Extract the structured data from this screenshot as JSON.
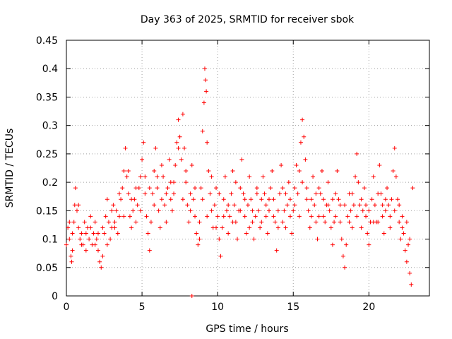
{
  "chart_data": {
    "type": "scatter",
    "title": "Day 363 of 2025, SRMTID for receiver sbok",
    "xlabel": "GPS time / hours",
    "ylabel": "SRMTID / TECUs",
    "xlim": [
      0,
      24
    ],
    "ylim": [
      0,
      0.45
    ],
    "xticks": [
      0,
      5,
      10,
      15,
      20
    ],
    "xtick_labels": [
      "0",
      "5",
      "10",
      "15",
      "20"
    ],
    "yticks": [
      0,
      0.05,
      0.1,
      0.15,
      0.2,
      0.25,
      0.3,
      0.35,
      0.4,
      0.45
    ],
    "ytick_labels": [
      "0",
      "0.05",
      "0.1",
      "0.15",
      "0.2",
      "0.25",
      "0.3",
      "0.35",
      "0.4",
      "0.45"
    ],
    "grid": true,
    "marker": "plus",
    "series": [
      {
        "name": "SRMTID",
        "color": "#ff0000",
        "points": [
          [
            0.0,
            0.09
          ],
          [
            0.1,
            0.12
          ],
          [
            0.2,
            0.1
          ],
          [
            0.3,
            0.07
          ],
          [
            0.35,
            0.06
          ],
          [
            0.4,
            0.08
          ],
          [
            0.5,
            0.13
          ],
          [
            0.55,
            0.16
          ],
          [
            0.6,
            0.19
          ],
          [
            0.7,
            0.15
          ],
          [
            0.8,
            0.12
          ],
          [
            0.9,
            0.1
          ],
          [
            1.0,
            0.11
          ],
          [
            1.1,
            0.09
          ],
          [
            1.2,
            0.13
          ],
          [
            1.3,
            0.08
          ],
          [
            1.4,
            0.12
          ],
          [
            1.5,
            0.1
          ],
          [
            1.6,
            0.14
          ],
          [
            1.7,
            0.09
          ],
          [
            1.8,
            0.11
          ],
          [
            1.9,
            0.13
          ],
          [
            2.0,
            0.1
          ],
          [
            2.1,
            0.08
          ],
          [
            2.2,
            0.06
          ],
          [
            2.3,
            0.05
          ],
          [
            2.4,
            0.07
          ],
          [
            2.5,
            0.11
          ],
          [
            2.6,
            0.14
          ],
          [
            2.7,
            0.17
          ],
          [
            2.8,
            0.13
          ],
          [
            2.9,
            0.1
          ],
          [
            3.0,
            0.12
          ],
          [
            3.1,
            0.16
          ],
          [
            3.2,
            0.13
          ],
          [
            3.3,
            0.15
          ],
          [
            3.4,
            0.11
          ],
          [
            3.5,
            0.14
          ],
          [
            3.6,
            0.17
          ],
          [
            3.7,
            0.19
          ],
          [
            3.8,
            0.22
          ],
          [
            3.9,
            0.26
          ],
          [
            4.0,
            0.21
          ],
          [
            4.1,
            0.18
          ],
          [
            4.2,
            0.14
          ],
          [
            4.3,
            0.12
          ],
          [
            4.4,
            0.15
          ],
          [
            4.5,
            0.17
          ],
          [
            4.6,
            0.13
          ],
          [
            4.7,
            0.16
          ],
          [
            4.8,
            0.19
          ],
          [
            4.9,
            0.21
          ],
          [
            5.0,
            0.24
          ],
          [
            5.1,
            0.27
          ],
          [
            5.2,
            0.18
          ],
          [
            5.3,
            0.14
          ],
          [
            5.4,
            0.11
          ],
          [
            5.5,
            0.08
          ],
          [
            5.6,
            0.13
          ],
          [
            5.7,
            0.18
          ],
          [
            5.8,
            0.22
          ],
          [
            5.9,
            0.26
          ],
          [
            6.0,
            0.19
          ],
          [
            6.1,
            0.15
          ],
          [
            6.2,
            0.12
          ],
          [
            6.3,
            0.17
          ],
          [
            6.4,
            0.21
          ],
          [
            6.5,
            0.16
          ],
          [
            6.6,
            0.13
          ],
          [
            6.7,
            0.19
          ],
          [
            6.8,
            0.24
          ],
          [
            6.9,
            0.2
          ],
          [
            7.0,
            0.15
          ],
          [
            7.1,
            0.18
          ],
          [
            7.2,
            0.23
          ],
          [
            7.3,
            0.27
          ],
          [
            7.4,
            0.31
          ],
          [
            7.5,
            0.28
          ],
          [
            7.6,
            0.24
          ],
          [
            7.7,
            0.32
          ],
          [
            7.8,
            0.26
          ],
          [
            7.9,
            0.2
          ],
          [
            8.0,
            0.16
          ],
          [
            8.1,
            0.13
          ],
          [
            8.2,
            0.18
          ],
          [
            8.3,
            0.23
          ],
          [
            8.4,
            0.17
          ],
          [
            8.5,
            0.14
          ],
          [
            8.6,
            0.11
          ],
          [
            8.7,
            0.09
          ],
          [
            8.8,
            0.13
          ],
          [
            8.9,
            0.19
          ],
          [
            9.0,
            0.29
          ],
          [
            9.1,
            0.34
          ],
          [
            9.15,
            0.4
          ],
          [
            9.2,
            0.38
          ],
          [
            9.25,
            0.36
          ],
          [
            9.3,
            0.27
          ],
          [
            9.4,
            0.22
          ],
          [
            9.5,
            0.18
          ],
          [
            9.6,
            0.15
          ],
          [
            9.7,
            0.12
          ],
          [
            9.8,
            0.16
          ],
          [
            9.9,
            0.19
          ],
          [
            10.0,
            0.14
          ],
          [
            10.1,
            0.1
          ],
          [
            10.2,
            0.07
          ],
          [
            10.3,
            0.12
          ],
          [
            10.4,
            0.17
          ],
          [
            10.5,
            0.21
          ],
          [
            10.6,
            0.15
          ],
          [
            10.7,
            0.11
          ],
          [
            10.8,
            0.14
          ],
          [
            10.9,
            0.18
          ],
          [
            11.0,
            0.22
          ],
          [
            11.1,
            0.16
          ],
          [
            11.2,
            0.13
          ],
          [
            11.3,
            0.1
          ],
          [
            11.4,
            0.15
          ],
          [
            11.5,
            0.19
          ],
          [
            11.6,
            0.24
          ],
          [
            11.7,
            0.18
          ],
          [
            11.8,
            0.14
          ],
          [
            11.9,
            0.11
          ],
          [
            12.0,
            0.16
          ],
          [
            12.1,
            0.21
          ],
          [
            12.2,
            0.17
          ],
          [
            12.3,
            0.13
          ],
          [
            12.4,
            0.1
          ],
          [
            12.5,
            0.14
          ],
          [
            12.6,
            0.19
          ],
          [
            12.7,
            0.15
          ],
          [
            12.8,
            0.12
          ],
          [
            12.9,
            0.17
          ],
          [
            13.0,
            0.21
          ],
          [
            13.1,
            0.18
          ],
          [
            13.2,
            0.14
          ],
          [
            13.3,
            0.11
          ],
          [
            13.4,
            0.15
          ],
          [
            13.5,
            0.19
          ],
          [
            13.6,
            0.22
          ],
          [
            13.7,
            0.17
          ],
          [
            13.8,
            0.13
          ],
          [
            13.9,
            0.08
          ],
          [
            14.0,
            0.12
          ],
          [
            14.1,
            0.18
          ],
          [
            14.2,
            0.23
          ],
          [
            14.3,
            0.19
          ],
          [
            14.4,
            0.15
          ],
          [
            14.5,
            0.12
          ],
          [
            14.6,
            0.16
          ],
          [
            14.7,
            0.2
          ],
          [
            14.8,
            0.14
          ],
          [
            14.9,
            0.11
          ],
          [
            15.0,
            0.15
          ],
          [
            15.1,
            0.19
          ],
          [
            15.2,
            0.23
          ],
          [
            15.3,
            0.18
          ],
          [
            15.4,
            0.22
          ],
          [
            15.5,
            0.27
          ],
          [
            15.6,
            0.31
          ],
          [
            15.7,
            0.28
          ],
          [
            15.8,
            0.24
          ],
          [
            15.9,
            0.19
          ],
          [
            16.0,
            0.15
          ],
          [
            16.1,
            0.12
          ],
          [
            16.2,
            0.17
          ],
          [
            16.3,
            0.21
          ],
          [
            16.4,
            0.16
          ],
          [
            16.5,
            0.13
          ],
          [
            16.6,
            0.1
          ],
          [
            16.7,
            0.14
          ],
          [
            16.8,
            0.18
          ],
          [
            16.9,
            0.22
          ],
          [
            17.0,
            0.17
          ],
          [
            17.1,
            0.13
          ],
          [
            17.2,
            0.16
          ],
          [
            17.3,
            0.2
          ],
          [
            17.4,
            0.15
          ],
          [
            17.5,
            0.12
          ],
          [
            17.6,
            0.09
          ],
          [
            17.7,
            0.13
          ],
          [
            17.8,
            0.18
          ],
          [
            17.9,
            0.22
          ],
          [
            18.0,
            0.17
          ],
          [
            18.1,
            0.13
          ],
          [
            18.2,
            0.1
          ],
          [
            18.3,
            0.07
          ],
          [
            18.4,
            0.05
          ],
          [
            18.5,
            0.09
          ],
          [
            18.6,
            0.14
          ],
          [
            18.7,
            0.18
          ],
          [
            18.8,
            0.15
          ],
          [
            18.9,
            0.12
          ],
          [
            19.0,
            0.16
          ],
          [
            19.1,
            0.21
          ],
          [
            19.2,
            0.25
          ],
          [
            19.3,
            0.2
          ],
          [
            19.4,
            0.16
          ],
          [
            19.5,
            0.12
          ],
          [
            19.6,
            0.15
          ],
          [
            19.7,
            0.19
          ],
          [
            19.8,
            0.14
          ],
          [
            19.9,
            0.11
          ],
          [
            20.0,
            0.09
          ],
          [
            20.1,
            0.13
          ],
          [
            20.2,
            0.17
          ],
          [
            20.3,
            0.21
          ],
          [
            20.4,
            0.16
          ],
          [
            20.5,
            0.13
          ],
          [
            20.6,
            0.18
          ],
          [
            20.7,
            0.23
          ],
          [
            20.8,
            0.18
          ],
          [
            20.9,
            0.14
          ],
          [
            21.0,
            0.11
          ],
          [
            21.1,
            0.15
          ],
          [
            21.2,
            0.19
          ],
          [
            21.3,
            0.16
          ],
          [
            21.4,
            0.12
          ],
          [
            21.5,
            0.17
          ],
          [
            21.6,
            0.22
          ],
          [
            21.7,
            0.26
          ],
          [
            21.8,
            0.21
          ],
          [
            21.9,
            0.17
          ],
          [
            22.0,
            0.13
          ],
          [
            22.1,
            0.1
          ],
          [
            22.2,
            0.14
          ],
          [
            22.3,
            0.11
          ],
          [
            22.4,
            0.08
          ],
          [
            22.5,
            0.06
          ],
          [
            22.6,
            0.09
          ],
          [
            22.7,
            0.04
          ],
          [
            22.8,
            0.02
          ],
          [
            22.9,
            0.19
          ],
          [
            0.2,
            0.13
          ],
          [
            0.8,
            0.16
          ],
          [
            1.3,
            0.11
          ],
          [
            1.9,
            0.09
          ],
          [
            2.4,
            0.12
          ],
          [
            3.0,
            0.15
          ],
          [
            3.5,
            0.18
          ],
          [
            4.1,
            0.22
          ],
          [
            4.6,
            0.19
          ],
          [
            5.2,
            0.21
          ],
          [
            5.8,
            0.16
          ],
          [
            6.3,
            0.23
          ],
          [
            6.9,
            0.17
          ],
          [
            7.4,
            0.26
          ],
          [
            7.9,
            0.22
          ],
          [
            8.5,
            0.19
          ],
          [
            9.0,
            0.17
          ],
          [
            9.6,
            0.21
          ],
          [
            10.1,
            0.18
          ],
          [
            10.7,
            0.16
          ],
          [
            11.2,
            0.2
          ],
          [
            11.8,
            0.17
          ],
          [
            12.3,
            0.15
          ],
          [
            12.9,
            0.13
          ],
          [
            13.4,
            0.17
          ],
          [
            14.0,
            0.15
          ],
          [
            14.5,
            0.18
          ],
          [
            15.1,
            0.16
          ],
          [
            15.6,
            0.2
          ],
          [
            16.2,
            0.14
          ],
          [
            16.7,
            0.19
          ],
          [
            17.3,
            0.16
          ],
          [
            17.8,
            0.14
          ],
          [
            18.4,
            0.16
          ],
          [
            18.9,
            0.18
          ],
          [
            19.5,
            0.17
          ],
          [
            20.0,
            0.15
          ],
          [
            20.6,
            0.13
          ],
          [
            21.1,
            0.17
          ],
          [
            21.7,
            0.15
          ],
          [
            22.2,
            0.12
          ],
          [
            22.7,
            0.1
          ],
          [
            0.4,
            0.11
          ],
          [
            1.0,
            0.09
          ],
          [
            1.6,
            0.12
          ],
          [
            2.1,
            0.11
          ],
          [
            2.7,
            0.09
          ],
          [
            3.2,
            0.12
          ],
          [
            3.8,
            0.14
          ],
          [
            4.3,
            0.17
          ],
          [
            4.9,
            0.15
          ],
          [
            5.5,
            0.19
          ],
          [
            6.0,
            0.21
          ],
          [
            6.6,
            0.18
          ],
          [
            7.1,
            0.2
          ],
          [
            7.7,
            0.17
          ],
          [
            8.2,
            0.15
          ],
          [
            8.8,
            0.1
          ],
          [
            9.3,
            0.14
          ],
          [
            9.9,
            0.12
          ],
          [
            10.4,
            0.14
          ],
          [
            11.0,
            0.13
          ],
          [
            11.5,
            0.15
          ],
          [
            12.1,
            0.12
          ],
          [
            12.6,
            0.18
          ],
          [
            13.2,
            0.16
          ],
          [
            13.7,
            0.14
          ],
          [
            14.3,
            0.13
          ],
          [
            14.8,
            0.17
          ],
          [
            15.4,
            0.14
          ],
          [
            15.9,
            0.17
          ],
          [
            16.5,
            0.18
          ],
          [
            17.0,
            0.14
          ],
          [
            17.6,
            0.17
          ],
          [
            18.1,
            0.16
          ],
          [
            18.7,
            0.13
          ],
          [
            19.2,
            0.14
          ],
          [
            19.8,
            0.16
          ],
          [
            20.3,
            0.13
          ],
          [
            20.9,
            0.16
          ],
          [
            21.4,
            0.14
          ],
          [
            22.0,
            0.16
          ],
          [
            22.5,
            0.13
          ],
          [
            8.3,
            0.0
          ]
        ]
      }
    ]
  }
}
